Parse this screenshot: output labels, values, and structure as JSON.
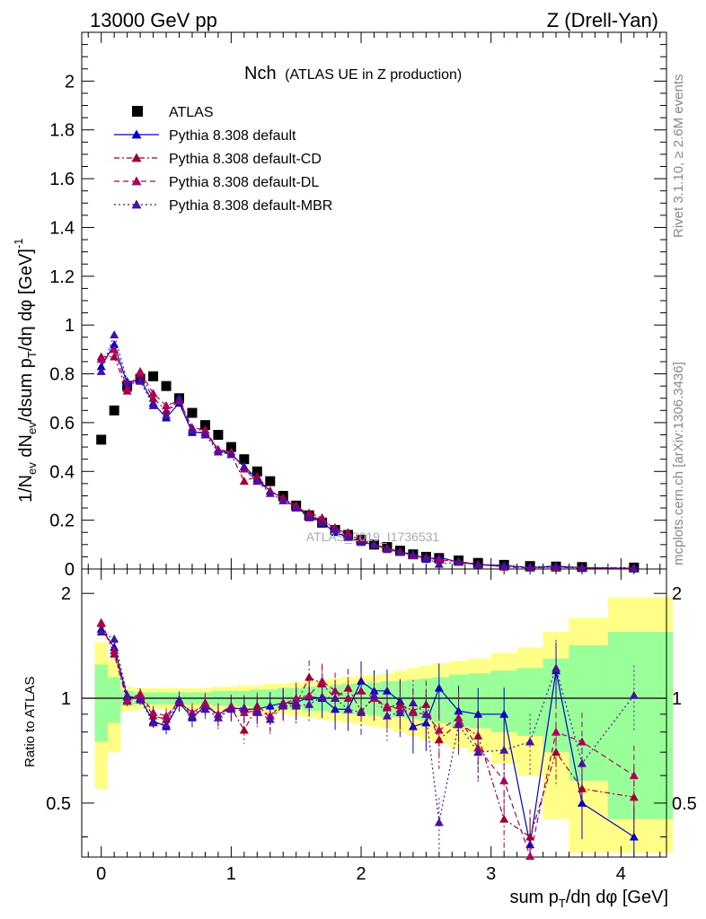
{
  "header": {
    "left": "13000 GeV pp",
    "right": "Z (Drell-Yan)"
  },
  "title_main": "Nch",
  "title_sub": "(ATLAS UE in Z production)",
  "side_top": "Rivet 3.1.10, ≥ 2.6M events",
  "side_bottom": "mcplots.cern.ch [arXiv:1306.3436]",
  "watermark": "ATLAS_2019_I1736531",
  "y_label_main": "1/N_ev dN_ev/dsum p_T/dη dφ [GeV]^-1",
  "y_label_ratio": "Ratio to ATLAS",
  "x_label": "sum p_T/dη dφ [GeV]",
  "legend": [
    {
      "label": "ATLAS",
      "color": "#000000",
      "marker": "square",
      "dash": "none"
    },
    {
      "label": "Pythia 8.308 default",
      "color": "#0000cc",
      "marker": "triangle",
      "dash": "solid"
    },
    {
      "label": "Pythia 8.308 default-CD",
      "color": "#a00030",
      "marker": "triangle",
      "dash": "dashdot"
    },
    {
      "label": "Pythia 8.308 default-DL",
      "color": "#b0005a",
      "marker": "triangle",
      "dash": "dash"
    },
    {
      "label": "Pythia 8.308 default-MBR",
      "color": "#4a10a0",
      "marker": "triangle",
      "dash": "dot"
    }
  ],
  "chart_data": {
    "type": "scatter",
    "x": [
      0.0,
      0.1,
      0.2,
      0.3,
      0.4,
      0.5,
      0.6,
      0.7,
      0.8,
      0.9,
      1.0,
      1.1,
      1.2,
      1.3,
      1.4,
      1.5,
      1.6,
      1.7,
      1.8,
      1.9,
      2.0,
      2.1,
      2.2,
      2.3,
      2.4,
      2.5,
      2.6,
      2.75,
      2.9,
      3.1,
      3.3,
      3.5,
      3.7,
      4.1
    ],
    "xlim": [
      -0.15,
      4.35
    ],
    "main_ylim": [
      0,
      2.2
    ],
    "main_yticks": [
      0,
      0.2,
      0.4,
      0.6,
      0.8,
      1.0,
      1.2,
      1.4,
      1.6,
      1.8,
      2.0
    ],
    "ratio_ylim": [
      0.35,
      2.35
    ],
    "ratio_yticks": [
      0.5,
      1,
      2
    ],
    "xticks": [
      0,
      1,
      2,
      3,
      4
    ],
    "series": [
      {
        "name": "ATLAS",
        "values": [
          0.53,
          0.65,
          0.75,
          0.78,
          0.79,
          0.75,
          0.7,
          0.64,
          0.59,
          0.55,
          0.5,
          0.45,
          0.4,
          0.36,
          0.3,
          0.26,
          0.22,
          0.19,
          0.16,
          0.14,
          0.12,
          0.1,
          0.09,
          0.075,
          0.06,
          0.05,
          0.045,
          0.035,
          0.025,
          0.017,
          0.012,
          0.01,
          0.008,
          0.006
        ]
      },
      {
        "name": "Pythia 8.308 default",
        "values": [
          0.83,
          0.92,
          0.76,
          0.78,
          0.68,
          0.62,
          0.68,
          0.56,
          0.56,
          0.49,
          0.47,
          0.42,
          0.37,
          0.32,
          0.29,
          0.25,
          0.22,
          0.19,
          0.15,
          0.13,
          0.11,
          0.1,
          0.085,
          0.07,
          0.06,
          0.04,
          0.048,
          0.028,
          0.018,
          0.015,
          0.005,
          0.012,
          0.005,
          0.002
        ]
      },
      {
        "name": "Pythia 8.308 default-CD",
        "values": [
          0.87,
          0.87,
          0.73,
          0.8,
          0.7,
          0.65,
          0.69,
          0.57,
          0.57,
          0.48,
          0.47,
          0.36,
          0.38,
          0.32,
          0.29,
          0.25,
          0.23,
          0.21,
          0.16,
          0.15,
          0.11,
          0.1,
          0.085,
          0.072,
          0.055,
          0.048,
          0.04,
          0.03,
          0.02,
          0.008,
          0.005,
          0.007,
          0.004,
          0.003
        ]
      },
      {
        "name": "Pythia 8.308 default-DL",
        "values": [
          0.86,
          0.9,
          0.74,
          0.81,
          0.72,
          0.67,
          0.69,
          0.58,
          0.57,
          0.49,
          0.48,
          0.41,
          0.36,
          0.32,
          0.29,
          0.26,
          0.22,
          0.2,
          0.17,
          0.14,
          0.12,
          0.1,
          0.085,
          0.07,
          0.055,
          0.045,
          0.037,
          0.031,
          0.018,
          0.01,
          0.004,
          0.008,
          0.006,
          0.004
        ]
      },
      {
        "name": "Pythia 8.308 default-MBR",
        "values": [
          0.81,
          0.96,
          0.77,
          0.77,
          0.67,
          0.63,
          0.7,
          0.57,
          0.55,
          0.48,
          0.47,
          0.42,
          0.36,
          0.31,
          0.28,
          0.25,
          0.21,
          0.19,
          0.16,
          0.13,
          0.11,
          0.1,
          0.08,
          0.068,
          0.058,
          0.045,
          0.02,
          0.029,
          0.017,
          0.012,
          0.009,
          0.012,
          0.005,
          0.006
        ]
      }
    ],
    "ratio_series": [
      {
        "name": "Pythia 8.308 default",
        "values": [
          1.58,
          1.4,
          1.01,
          1.0,
          0.86,
          0.83,
          0.97,
          0.88,
          0.95,
          0.9,
          0.94,
          0.93,
          0.93,
          0.95,
          0.97,
          0.97,
          1.01,
          1.0,
          0.93,
          0.93,
          1.12,
          1.05,
          1.05,
          0.98,
          0.83,
          0.85,
          1.07,
          0.92,
          0.9,
          0.9,
          0.38,
          1.2,
          0.5,
          0.4
        ]
      },
      {
        "name": "Pythia 8.308 default-CD",
        "values": [
          1.64,
          1.34,
          0.98,
          1.02,
          0.89,
          0.87,
          0.99,
          0.89,
          0.97,
          0.88,
          0.94,
          0.81,
          0.95,
          0.89,
          0.97,
          0.96,
          1.15,
          1.1,
          1.0,
          1.07,
          0.92,
          1.0,
          0.94,
          0.96,
          0.92,
          0.96,
          0.76,
          0.85,
          0.78,
          0.45,
          0.4,
          0.7,
          0.55,
          0.52
        ]
      },
      {
        "name": "Pythia 8.308 default-DL",
        "values": [
          1.65,
          1.37,
          0.99,
          1.03,
          0.91,
          0.89,
          0.98,
          0.91,
          0.96,
          0.9,
          0.95,
          0.91,
          0.92,
          0.89,
          0.96,
          1.0,
          1.02,
          1.12,
          1.05,
          1.0,
          1.05,
          1.0,
          0.95,
          0.93,
          0.91,
          0.9,
          0.81,
          0.88,
          0.72,
          0.58,
          0.33,
          0.8,
          0.75,
          0.6
        ]
      },
      {
        "name": "Pythia 8.308 default-MBR",
        "values": [
          1.55,
          1.48,
          1.02,
          0.99,
          0.85,
          0.84,
          0.99,
          0.89,
          0.93,
          0.88,
          0.93,
          0.94,
          0.91,
          0.87,
          0.95,
          0.95,
          0.96,
          1.01,
          1.0,
          0.93,
          0.91,
          1.02,
          0.89,
          0.91,
          0.97,
          0.9,
          0.44,
          0.84,
          0.7,
          0.71,
          0.75,
          1.22,
          0.65,
          1.02
        ]
      }
    ],
    "band_inner": [
      0.25,
      0.15,
      0.05,
      0.04,
      0.04,
      0.04,
      0.04,
      0.04,
      0.04,
      0.05,
      0.05,
      0.05,
      0.06,
      0.06,
      0.07,
      0.07,
      0.08,
      0.08,
      0.09,
      0.1,
      0.1,
      0.11,
      0.12,
      0.12,
      0.13,
      0.14,
      0.15,
      0.17,
      0.18,
      0.2,
      0.22,
      0.3,
      0.42,
      0.55
    ],
    "band_outer": [
      0.45,
      0.3,
      0.08,
      0.07,
      0.07,
      0.07,
      0.07,
      0.07,
      0.07,
      0.08,
      0.08,
      0.09,
      0.09,
      0.1,
      0.1,
      0.11,
      0.12,
      0.13,
      0.14,
      0.15,
      0.16,
      0.17,
      0.18,
      0.2,
      0.22,
      0.24,
      0.26,
      0.28,
      0.3,
      0.35,
      0.4,
      0.55,
      0.7,
      0.95
    ]
  }
}
